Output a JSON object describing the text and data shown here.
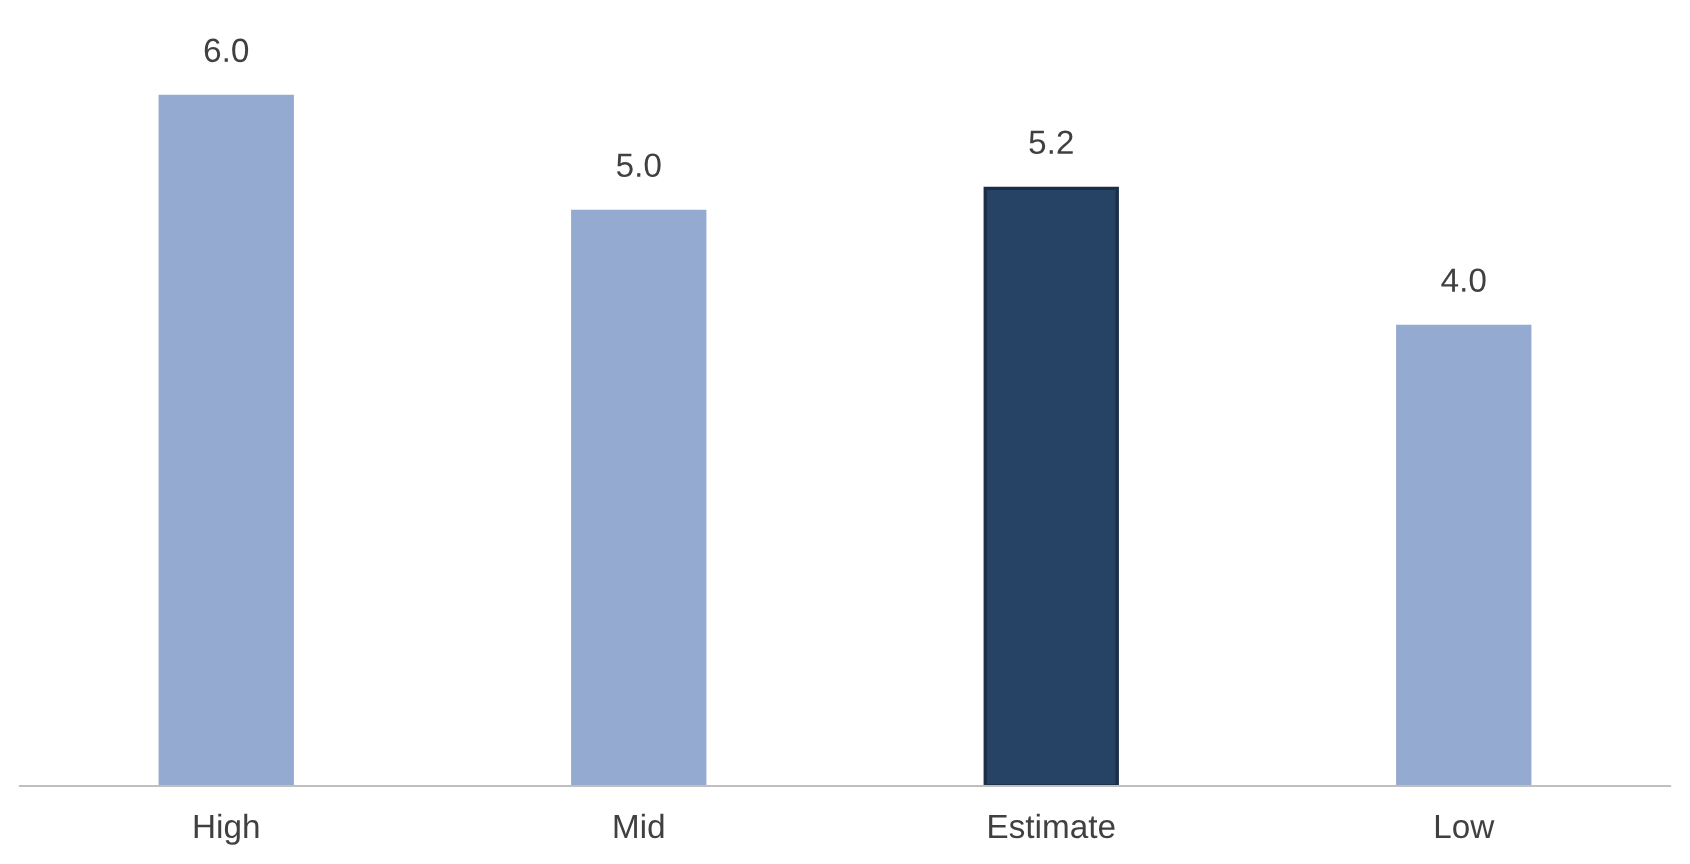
{
  "chart_data": {
    "type": "bar",
    "categories": [
      "High",
      "Mid",
      "Estimate",
      "Low"
    ],
    "values": [
      6.0,
      5.0,
      5.2,
      4.0
    ],
    "colors": [
      "#95aad0",
      "#95aad0",
      "#264366",
      "#95aad0"
    ],
    "value_labels": [
      "6.0",
      "5.0",
      "5.2",
      "4.0"
    ],
    "grid": false,
    "legend": false
  }
}
